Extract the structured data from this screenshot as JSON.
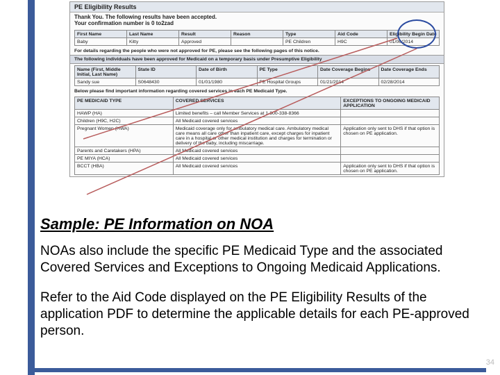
{
  "colors": {
    "accent": "#3b5b9a",
    "band": "#e2e7ee",
    "border": "#888888",
    "text": "#000000"
  },
  "page_number": "34",
  "caption": "Sample: PE Information on NOA",
  "para1": "NOAs also include the specific PE Medicaid Type and the associated Covered Services and Exceptions to Ongoing Medicaid Applications.",
  "para2": "Refer to the Aid Code displayed on the PE Eligibility Results of the application PDF to determine the applicable details for each PE-approved person.",
  "shot": {
    "panel_title": "PE Eligibility Results",
    "thanks": "Thank You. The following results have been accepted.",
    "conf": "Your confirmation number is 0 to2zad",
    "t1": {
      "headers": [
        "First Name",
        "Last Name",
        "Result",
        "Reason",
        "Type",
        "Aid Code",
        "Eligibility Begin Date"
      ],
      "rows": [
        [
          "Baby",
          "Kitty",
          "Approved",
          "",
          "PE Children",
          "H9C",
          "01/06/2014"
        ]
      ]
    },
    "details_note": "For details regarding the people who were not approved for PE, please see the following pages of this notice.",
    "band1": "The following individuals have been approved for Medicaid on a temporary basis under Presumptive Eligibility",
    "t2": {
      "headers": [
        "Name (First, Middle Initial, Last Name)",
        "State ID",
        "Date of Birth",
        "PE Type",
        "Date Coverage Begins",
        "Date Coverage Ends"
      ],
      "rows": [
        [
          "Sandy sue",
          "S0648430",
          "01/01/1980",
          "PE Hospital Groups",
          "01/21/2014",
          "02/28/2014"
        ]
      ]
    },
    "below_note": "Below please find important information regarding covered services in each PE Medicaid Type.",
    "t3": {
      "headers": [
        "PE MEDICAID TYPE",
        "COVERED SERVICES",
        "EXCEPTIONS TO ONGOING MEDICAID APPLICATION"
      ],
      "rows": [
        [
          "HAWP (HA)",
          "Limited benefits – call Member Services at 1-800-338-8366",
          ""
        ],
        [
          "Children (H9C, H2C)",
          "All Medicaid covered services",
          ""
        ],
        [
          "Pregnant Women (HWA)",
          "Medicaid coverage only for ambulatory medical care. Ambulatory medical care means all care other than inpatient care, except charges for inpatient care in a hospital or other medical institution and charges for termination or delivery of the baby, including miscarriage.",
          "Application only sent to DHS if that option is chosen on PE application."
        ],
        [
          "Parents and Caretakers (HPA)",
          "All Medicaid covered services",
          ""
        ],
        [
          "PE MIYA (HCA)",
          "All Medicaid covered services",
          ""
        ],
        [
          "BCCT (HBA)",
          "All Medicaid covered services",
          "Application only sent to DHS if that option is chosen on PE application."
        ]
      ],
      "col_widths": [
        "27%",
        "46%",
        "27%"
      ]
    }
  }
}
